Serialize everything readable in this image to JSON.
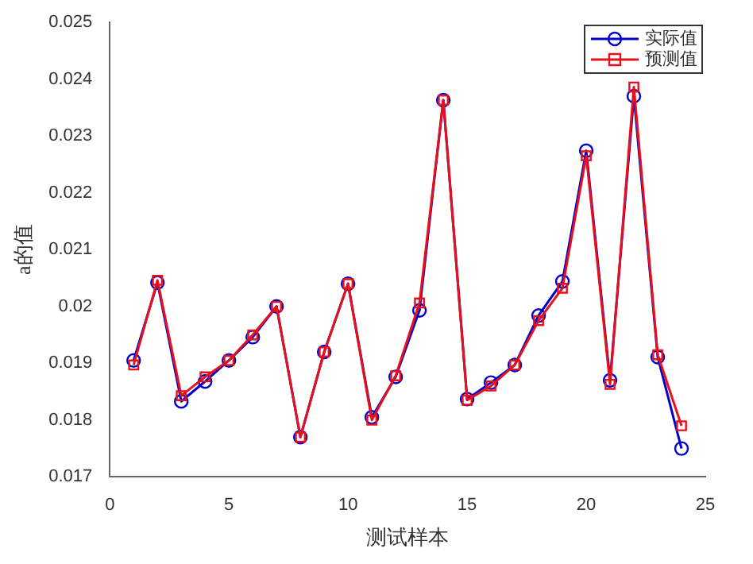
{
  "chart_data": {
    "type": "line",
    "xlabel": "测试样本",
    "ylabel": "a的值",
    "x": [
      1,
      2,
      3,
      4,
      5,
      6,
      7,
      8,
      9,
      10,
      11,
      12,
      13,
      14,
      15,
      16,
      17,
      18,
      19,
      20,
      21,
      22,
      23,
      24
    ],
    "series": [
      {
        "name": "实际值",
        "color": "#0000cc",
        "marker": "circle",
        "values": [
          0.01905,
          0.02042,
          0.01833,
          0.01868,
          0.01905,
          0.01946,
          0.02,
          0.0177,
          0.0192,
          0.0204,
          0.01805,
          0.01876,
          0.01993,
          0.02363,
          0.01837,
          0.01866,
          0.01897,
          0.01984,
          0.02044,
          0.02274,
          0.0187,
          0.0237,
          0.01911,
          0.0175
        ]
      },
      {
        "name": "预测值",
        "color": "#e8101a",
        "marker": "square",
        "values": [
          0.01897,
          0.02046,
          0.01843,
          0.01876,
          0.01905,
          0.0195,
          0.02,
          0.0177,
          0.0192,
          0.0204,
          0.018,
          0.01878,
          0.02006,
          0.02363,
          0.01835,
          0.0186,
          0.01897,
          0.01975,
          0.02032,
          0.02265,
          0.01863,
          0.02386,
          0.01915,
          0.0179
        ]
      }
    ],
    "xlim": [
      0,
      25
    ],
    "xticks": [
      0,
      5,
      10,
      15,
      20,
      25
    ],
    "ylim": [
      0.017,
      0.025
    ],
    "yticks": [
      0.017,
      0.018,
      0.019,
      0.02,
      0.021,
      0.022,
      0.023,
      0.024,
      0.025
    ],
    "grid": false,
    "legend": "top right"
  }
}
